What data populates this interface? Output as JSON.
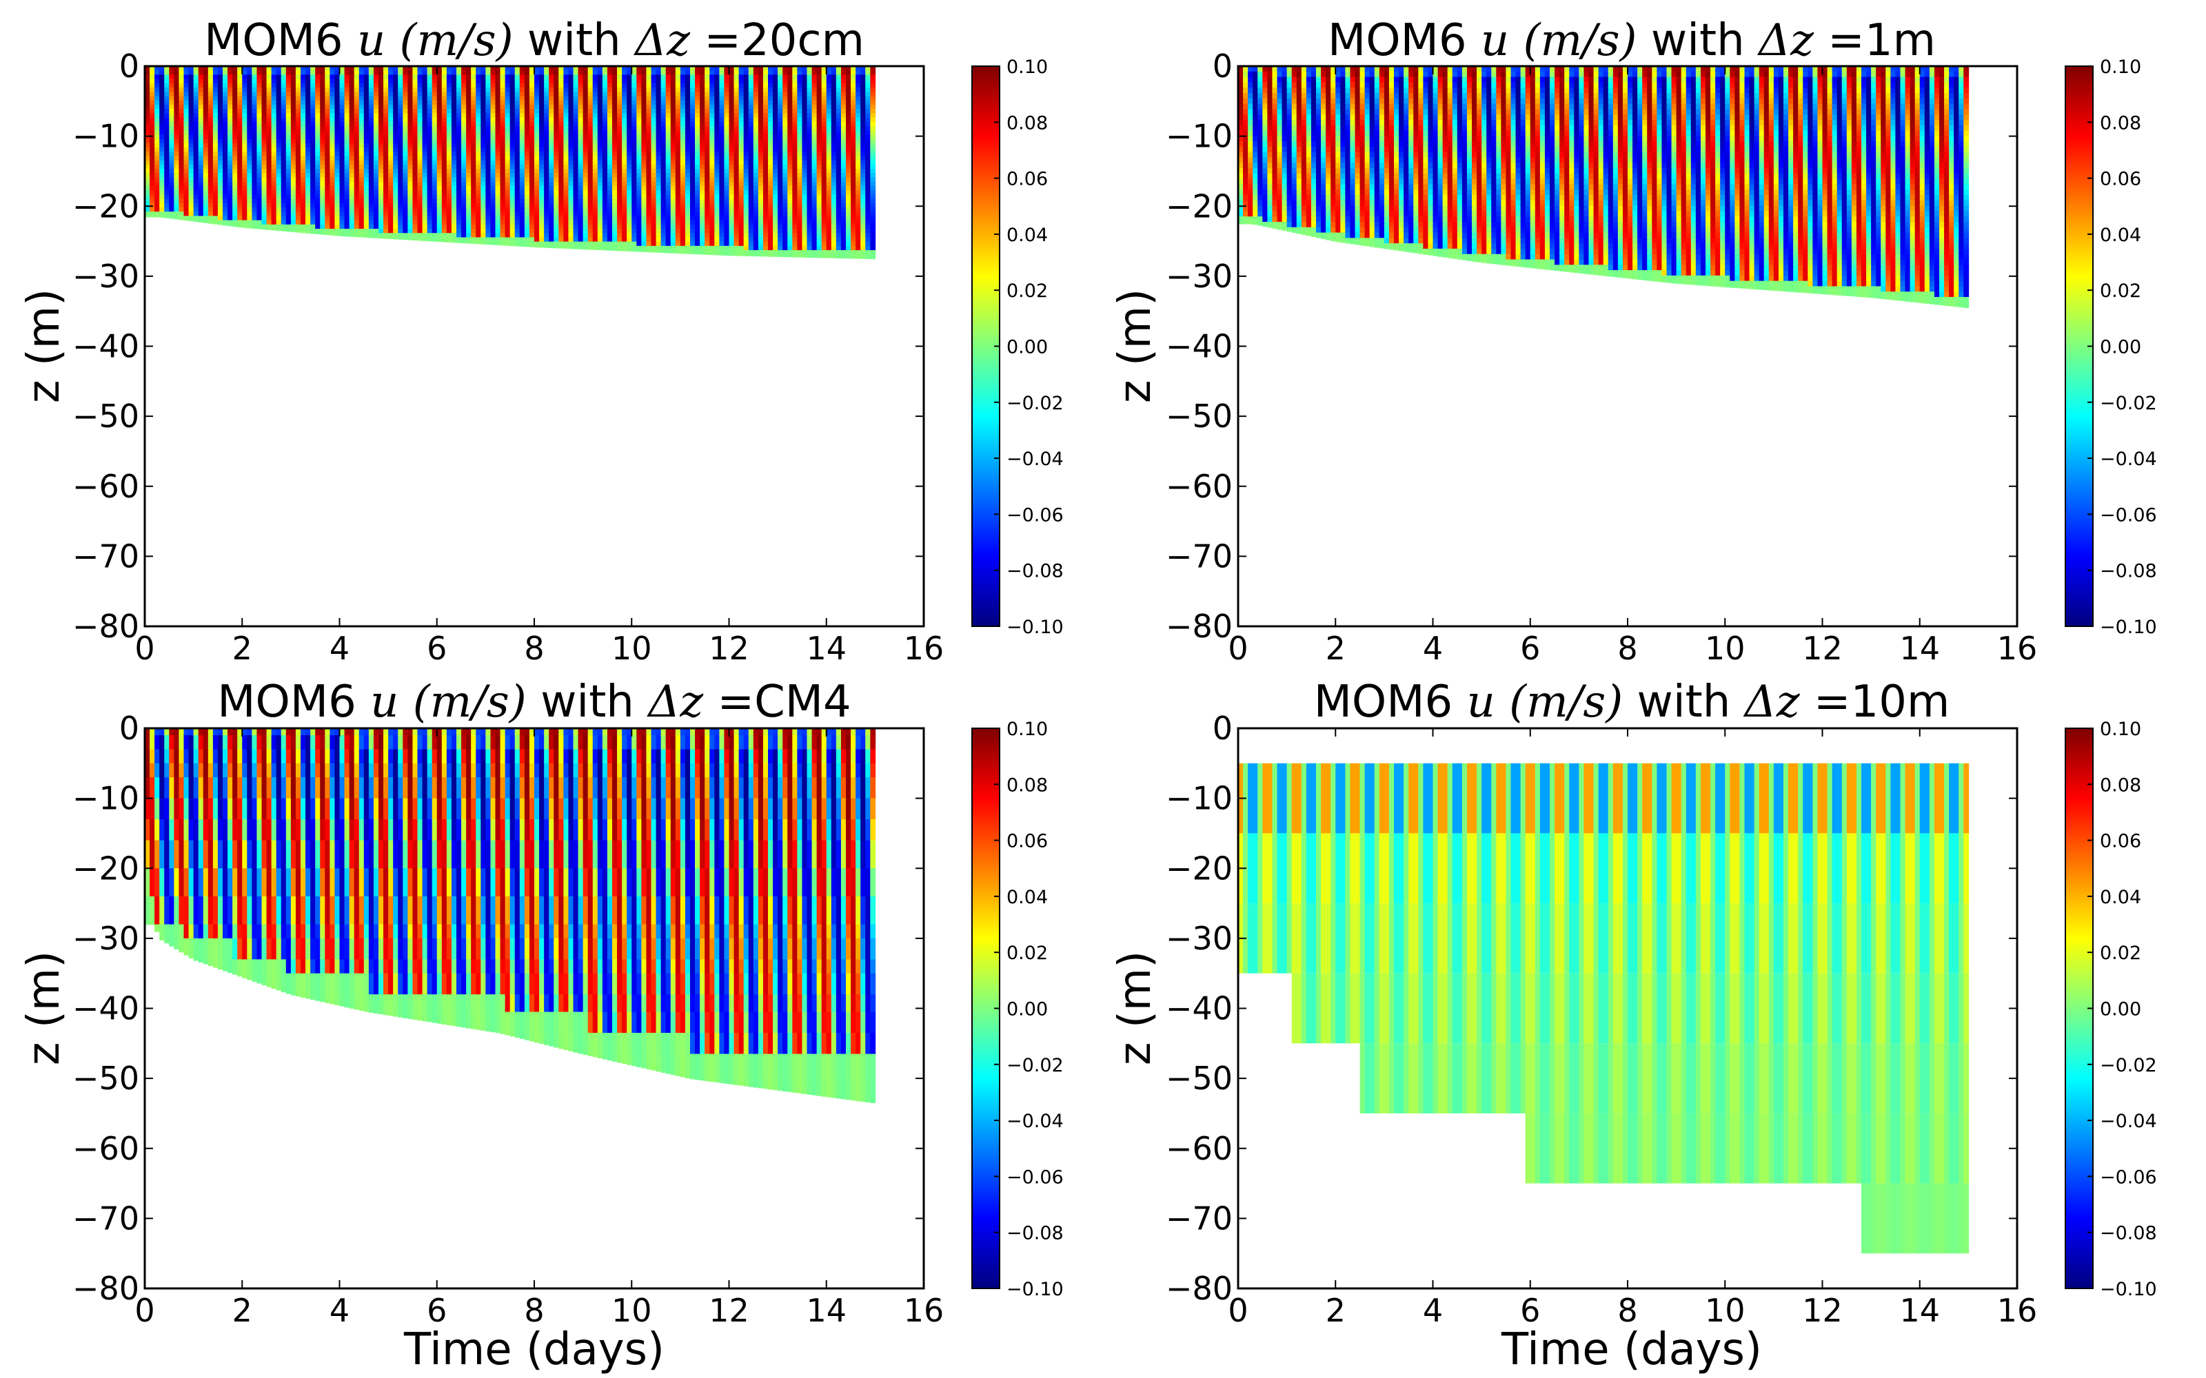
{
  "colors": {
    "colormap": "jet",
    "jet_stops": [
      "#00007f",
      "#0000ff",
      "#007fff",
      "#00ffff",
      "#7fff7f",
      "#ffff00",
      "#ff7f00",
      "#ff0000",
      "#7f0000"
    ],
    "axes_frame": "#000000",
    "background": "#ffffff"
  },
  "chart_data": [
    {
      "type": "heatmap",
      "title_prefix": "MOM6 ",
      "title_math": "u (m/s)",
      "title_mid": " with ",
      "title_delta": "Δz",
      "title_suffix": " =20cm",
      "xlabel": "",
      "ylabel": "z (m)",
      "xlim": [
        0,
        16
      ],
      "ylim": [
        -80,
        0
      ],
      "x_ticks": [
        "0",
        "2",
        "4",
        "6",
        "8",
        "10",
        "12",
        "14",
        "16"
      ],
      "y_ticks": [
        "0",
        "−10",
        "−20",
        "−30",
        "−40",
        "−50",
        "−60",
        "−70",
        "−80"
      ],
      "data_end_day": 15,
      "oscillation_period_days": 0.6,
      "surface_amplitude": 0.1,
      "layer_thickness_m": 0.2,
      "mixed_layer_depth_start": -21,
      "mixed_layer_depth_end": -27.5,
      "boundary": [
        [
          0.3,
          -21.5
        ],
        [
          2,
          -23
        ],
        [
          4,
          -24.2
        ],
        [
          6,
          -25
        ],
        [
          8,
          -25.8
        ],
        [
          10,
          -26.4
        ],
        [
          12,
          -27
        ],
        [
          15,
          -27.5
        ]
      ],
      "colorbar": {
        "min": -0.1,
        "max": 0.1,
        "ticks": [
          "0.10",
          "0.08",
          "0.06",
          "0.04",
          "0.02",
          "0.00",
          "−0.02",
          "−0.04",
          "−0.06",
          "−0.08",
          "−0.10"
        ]
      }
    },
    {
      "type": "heatmap",
      "title_prefix": "MOM6 ",
      "title_math": "u (m/s)",
      "title_mid": " with ",
      "title_delta": "Δz",
      "title_suffix": " =1m",
      "xlabel": "",
      "ylabel": "z (m)",
      "xlim": [
        0,
        16
      ],
      "ylim": [
        -80,
        0
      ],
      "x_ticks": [
        "0",
        "2",
        "4",
        "6",
        "8",
        "10",
        "12",
        "14",
        "16"
      ],
      "y_ticks": [
        "0",
        "−10",
        "−20",
        "−30",
        "−40",
        "−50",
        "−60",
        "−70",
        "−80"
      ],
      "data_end_day": 15,
      "oscillation_period_days": 0.6,
      "surface_amplitude": 0.1,
      "layer_thickness_m": 1,
      "mixed_layer_depth_start": -22,
      "mixed_layer_depth_end": -34.5,
      "boundary": [
        [
          0.3,
          -22.5
        ],
        [
          1,
          -23.5
        ],
        [
          2,
          -25
        ],
        [
          3.5,
          -26.5
        ],
        [
          5,
          -28
        ],
        [
          7,
          -29.5
        ],
        [
          9,
          -31
        ],
        [
          11,
          -32
        ],
        [
          13,
          -33
        ],
        [
          15,
          -34.5
        ]
      ],
      "colorbar": {
        "min": -0.1,
        "max": 0.1,
        "ticks": [
          "0.10",
          "0.08",
          "0.06",
          "0.04",
          "0.02",
          "0.00",
          "−0.02",
          "−0.04",
          "−0.06",
          "−0.08",
          "−0.10"
        ]
      }
    },
    {
      "type": "heatmap",
      "title_prefix": "MOM6 ",
      "title_math": "u (m/s)",
      "title_mid": " with ",
      "title_delta": "Δz",
      "title_suffix": " =CM4",
      "xlabel": "Time (days)",
      "ylabel": "z (m)",
      "xlim": [
        0,
        16
      ],
      "ylim": [
        -80,
        0
      ],
      "x_ticks": [
        "0",
        "2",
        "4",
        "6",
        "8",
        "10",
        "12",
        "14",
        "16"
      ],
      "y_ticks": [
        "0",
        "−10",
        "−20",
        "−30",
        "−40",
        "−50",
        "−60",
        "−70",
        "−80"
      ],
      "data_end_day": 15,
      "oscillation_period_days": 0.6,
      "surface_amplitude": 0.1,
      "layer_edges_m": [
        -1,
        -3,
        -5,
        -7,
        -10,
        -13,
        -16,
        -20,
        -24,
        -28,
        -30,
        -33,
        -35,
        -38,
        -40.5,
        -43.5,
        -46.5,
        -50,
        -53.5
      ],
      "boundary": [
        [
          0.2,
          -28
        ],
        [
          0.3,
          -30
        ],
        [
          1,
          -33
        ],
        [
          1.8,
          -35
        ],
        [
          3,
          -38
        ],
        [
          4.6,
          -40.5
        ],
        [
          7.3,
          -43.5
        ],
        [
          9,
          -46.5
        ],
        [
          11.2,
          -50
        ],
        [
          15,
          -53.5
        ]
      ],
      "colorbar": {
        "min": -0.1,
        "max": 0.1,
        "ticks": [
          "0.10",
          "0.08",
          "0.06",
          "0.04",
          "0.02",
          "0.00",
          "−0.02",
          "−0.04",
          "−0.06",
          "−0.08",
          "−0.10"
        ]
      }
    },
    {
      "type": "heatmap",
      "title_prefix": "MOM6 ",
      "title_math": "u (m/s)",
      "title_mid": " with ",
      "title_delta": "Δz",
      "title_suffix": " =10m",
      "xlabel": "Time (days)",
      "ylabel": "z (m)",
      "xlim": [
        0,
        16
      ],
      "ylim": [
        -80,
        0
      ],
      "x_ticks": [
        "0",
        "2",
        "4",
        "6",
        "8",
        "10",
        "12",
        "14",
        "16"
      ],
      "y_ticks": [
        "0",
        "−10",
        "−20",
        "−30",
        "−40",
        "−50",
        "−60",
        "−70",
        "−80"
      ],
      "data_end_day": 15,
      "oscillation_period_days": 0.6,
      "surface_amplitude": 0.1,
      "layers": [
        {
          "top": -5,
          "bottom": -15,
          "start_day": 0,
          "amplitude": 0.05
        },
        {
          "top": -15,
          "bottom": -25,
          "start_day": 0,
          "amplitude": 0.025
        },
        {
          "top": -25,
          "bottom": -35,
          "start_day": 0,
          "amplitude": 0.02
        },
        {
          "top": -35,
          "bottom": -45,
          "start_day": 1.1,
          "amplitude": 0.015
        },
        {
          "top": -45,
          "bottom": -55,
          "start_day": 2.5,
          "amplitude": 0.01
        },
        {
          "top": -55,
          "bottom": -65,
          "start_day": 5.9,
          "amplitude": 0.008
        },
        {
          "top": -65,
          "bottom": -75,
          "start_day": 12.8,
          "amplitude": 0.002
        }
      ],
      "colorbar": {
        "min": -0.1,
        "max": 0.1,
        "ticks": [
          "0.10",
          "0.08",
          "0.06",
          "0.04",
          "0.02",
          "0.00",
          "−0.02",
          "−0.04",
          "−0.06",
          "−0.08",
          "−0.10"
        ]
      }
    }
  ]
}
